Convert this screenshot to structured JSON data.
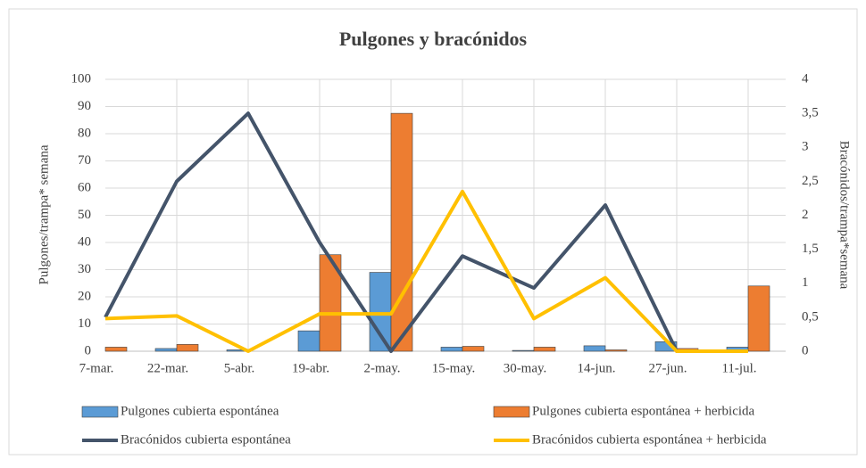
{
  "chart_data": {
    "type": "bar-line",
    "title": "Pulgones y bracónidos",
    "y_label": "Pulgones/trampa* semana",
    "y2_label": "Bracónidos/trampa*semana",
    "categories": [
      "7-mar.",
      "22-mar.",
      "5-abr.",
      "19-abr.",
      "2-may.",
      "15-may.",
      "30-may.",
      "14-jun.",
      "27-jun.",
      "11-jul."
    ],
    "ylim": [
      0,
      100
    ],
    "yticks": [
      0,
      10,
      20,
      30,
      40,
      50,
      60,
      70,
      80,
      90,
      100
    ],
    "y2lim": [
      0,
      4
    ],
    "y2ticks": [
      0,
      {
        "value": 0.5,
        "label": "0,5"
      },
      1,
      {
        "value": 1.5,
        "label": "1,5"
      },
      2,
      {
        "value": 2.5,
        "label": "2,5"
      },
      3,
      {
        "value": 3.5,
        "label": "3,5"
      },
      4
    ],
    "grid": true,
    "series": [
      {
        "name": "Pulgones cubierta espontánea",
        "type": "bar",
        "color": "#5b9bd5",
        "values": [
          0,
          1,
          0.5,
          7.5,
          29,
          1.5,
          0.3,
          2,
          3.5,
          1.5
        ]
      },
      {
        "name": "Pulgones cubierta espontánea + herbicida",
        "type": "bar",
        "color": "#ed7d31",
        "values": [
          1.5,
          2.5,
          0,
          35.5,
          87.5,
          1.8,
          1.5,
          0.5,
          1,
          24
        ]
      },
      {
        "name": "Bracónidos cubierta espontánea",
        "type": "line",
        "axis": "y2",
        "color": "#44546a",
        "values": [
          0.5,
          2.5,
          3.5,
          1.6,
          0,
          1.4,
          0.93,
          2.15,
          0,
          0
        ]
      },
      {
        "name": "Bracónidos cubierta espontánea + herbicida",
        "type": "line",
        "axis": "y2",
        "color": "#ffc000",
        "values": [
          0.48,
          0.52,
          0,
          0.55,
          0.55,
          2.35,
          0.48,
          1.08,
          0,
          0
        ]
      }
    ]
  }
}
